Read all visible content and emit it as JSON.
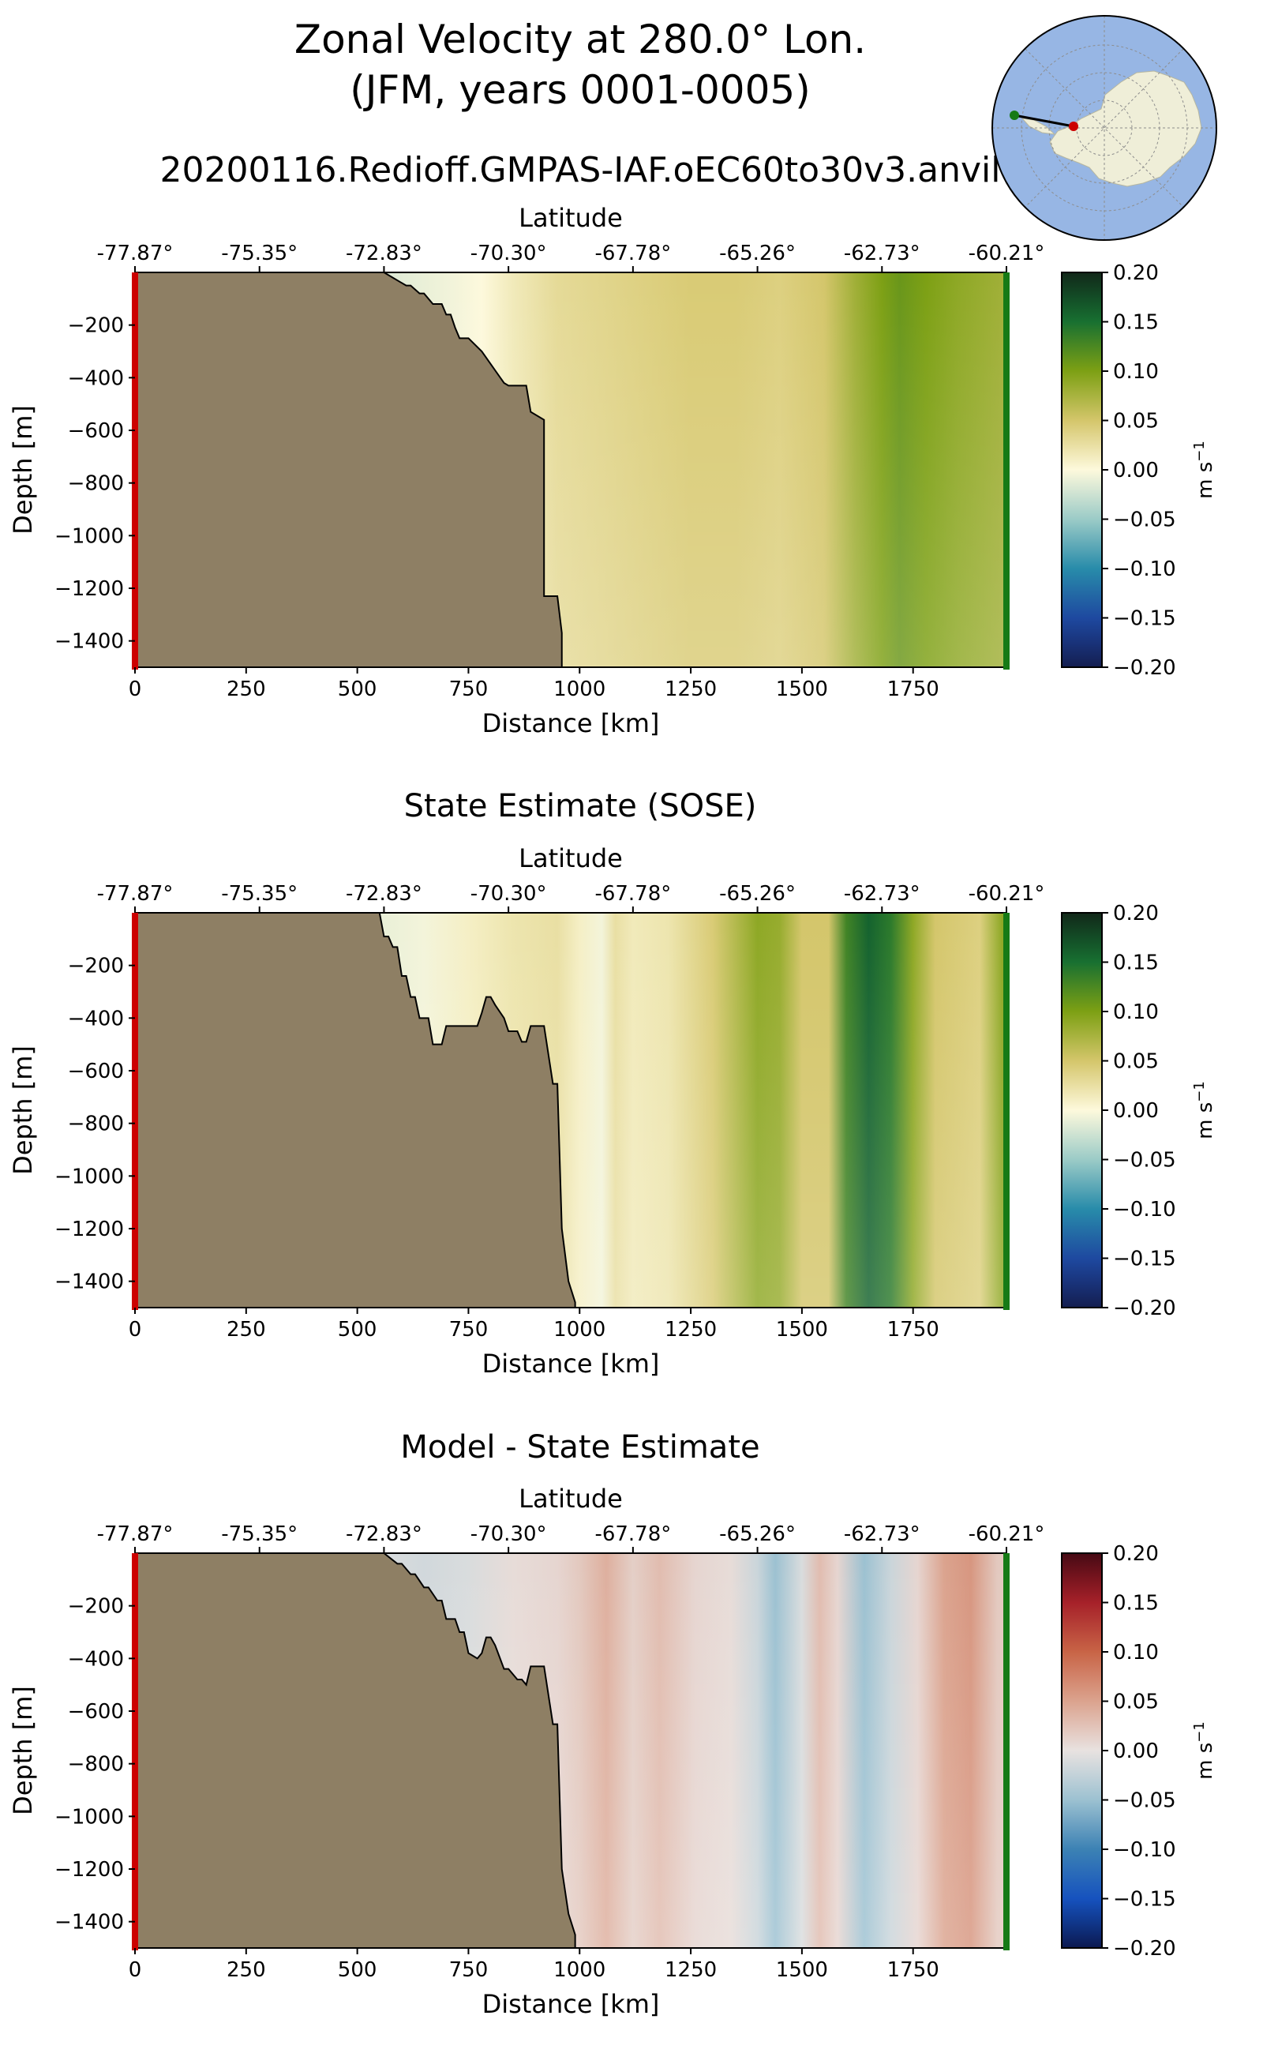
{
  "header": {
    "title_line1": "Zonal Velocity at 280.0° Lon.",
    "title_line2": "(JFM, years 0001-0005)",
    "run_name": "20200116.Redioff.GMPAS-IAF.oEC60to30v3.anvil"
  },
  "colors": {
    "land": "#8e7f64",
    "start_marker": "#cc0000",
    "end_marker": "#167a16",
    "map_ocean": "#97b6e4",
    "map_land": "#efeed8"
  },
  "chart_data": [
    {
      "type": "heatmap",
      "panel": "model",
      "title": "",
      "xlabel": "Distance [km]",
      "ylabel": "Depth [m]",
      "top_xlabel": "Latitude",
      "xlim": [
        0,
        1960
      ],
      "ylim": [
        -1500,
        0
      ],
      "x_ticks": [
        0,
        250,
        500,
        750,
        1000,
        1250,
        1500,
        1750
      ],
      "y_ticks": [
        -200,
        -400,
        -600,
        -800,
        -1000,
        -1200,
        -1400
      ],
      "top_ticks": [
        "-77.87°",
        "-75.35°",
        "-72.83°",
        "-70.30°",
        "-67.78°",
        "-65.26°",
        "-62.73°",
        "-60.21°"
      ],
      "colorbar": {
        "label": "m s$^{-1}$",
        "label_text": "m s",
        "label_exp": "−1",
        "vmin": -0.2,
        "vmax": 0.2,
        "ticks": [
          "0.20",
          "0.15",
          "0.10",
          "0.05",
          "0.00",
          "−0.05",
          "−0.10",
          "−0.15",
          "−0.20"
        ],
        "colormap": "diverging-green-blue"
      },
      "velocity_profile": {
        "distance_km": [
          580,
          650,
          720,
          780,
          850,
          950,
          1050,
          1150,
          1250,
          1350,
          1450,
          1550,
          1620,
          1680,
          1720,
          1780,
          1850,
          1900,
          1950
        ],
        "velocity": [
          -0.015,
          -0.01,
          -0.005,
          0.0,
          0.015,
          0.03,
          0.035,
          0.04,
          0.045,
          0.045,
          0.04,
          0.05,
          0.08,
          0.1,
          0.11,
          0.1,
          0.09,
          0.085,
          0.08
        ]
      },
      "seafloor": {
        "distance_km": [
          0,
          560,
          610,
          620,
          640,
          650,
          670,
          690,
          700,
          710,
          720,
          730,
          750,
          780,
          830,
          840,
          880,
          890,
          920,
          920,
          950,
          960,
          960
        ],
        "depth_m": [
          0,
          0,
          -50,
          -50,
          -80,
          -80,
          -120,
          -120,
          -160,
          -160,
          -210,
          -250,
          -250,
          -300,
          -420,
          -430,
          -430,
          -530,
          -560,
          -1230,
          -1230,
          -1370,
          -1500
        ]
      }
    },
    {
      "type": "heatmap",
      "panel": "sose",
      "title": "State Estimate (SOSE)",
      "xlabel": "Distance [km]",
      "ylabel": "Depth [m]",
      "top_xlabel": "Latitude",
      "xlim": [
        0,
        1960
      ],
      "ylim": [
        -1500,
        0
      ],
      "x_ticks": [
        0,
        250,
        500,
        750,
        1000,
        1250,
        1500,
        1750
      ],
      "y_ticks": [
        -200,
        -400,
        -600,
        -800,
        -1000,
        -1200,
        -1400
      ],
      "top_ticks": [
        "-77.87°",
        "-75.35°",
        "-72.83°",
        "-70.30°",
        "-67.78°",
        "-65.26°",
        "-62.73°",
        "-60.21°"
      ],
      "colorbar": {
        "label": "m s$^{-1}$",
        "label_text": "m s",
        "label_exp": "−1",
        "vmin": -0.2,
        "vmax": 0.2,
        "ticks": [
          "0.20",
          "0.15",
          "0.10",
          "0.05",
          "0.00",
          "−0.05",
          "−0.10",
          "−0.15",
          "−0.20"
        ],
        "colormap": "diverging-green-blue"
      },
      "velocity_profile": {
        "distance_km": [
          560,
          650,
          750,
          850,
          950,
          1000,
          1050,
          1080,
          1120,
          1200,
          1300,
          1400,
          1450,
          1500,
          1560,
          1600,
          1650,
          1700,
          1750,
          1800,
          1900,
          1950
        ],
        "velocity": [
          -0.01,
          -0.005,
          0.01,
          0.02,
          0.025,
          0.01,
          -0.005,
          0.025,
          0.015,
          0.02,
          0.045,
          0.09,
          0.085,
          0.05,
          0.05,
          0.13,
          0.16,
          0.14,
          0.09,
          0.05,
          0.04,
          0.09
        ]
      },
      "seafloor": {
        "distance_km": [
          0,
          550,
          560,
          570,
          580,
          590,
          600,
          610,
          620,
          630,
          640,
          660,
          670,
          690,
          700,
          740,
          770,
          780,
          790,
          800,
          810,
          830,
          840,
          860,
          870,
          880,
          890,
          920,
          940,
          950,
          960,
          975,
          990,
          990
        ],
        "depth_m": [
          0,
          0,
          -90,
          -90,
          -130,
          -130,
          -240,
          -240,
          -320,
          -320,
          -400,
          -400,
          -500,
          -500,
          -430,
          -430,
          -430,
          -380,
          -320,
          -320,
          -350,
          -400,
          -450,
          -450,
          -490,
          -490,
          -430,
          -430,
          -650,
          -650,
          -1200,
          -1400,
          -1480,
          -1500
        ]
      }
    },
    {
      "type": "heatmap",
      "panel": "difference",
      "title": "Model - State Estimate",
      "xlabel": "Distance [km]",
      "ylabel": "Depth [m]",
      "top_xlabel": "Latitude",
      "xlim": [
        0,
        1960
      ],
      "ylim": [
        -1500,
        0
      ],
      "x_ticks": [
        0,
        250,
        500,
        750,
        1000,
        1250,
        1500,
        1750
      ],
      "y_ticks": [
        -200,
        -400,
        -600,
        -800,
        -1000,
        -1200,
        -1400
      ],
      "top_ticks": [
        "-77.87°",
        "-75.35°",
        "-72.83°",
        "-70.30°",
        "-67.78°",
        "-65.26°",
        "-62.73°",
        "-60.21°"
      ],
      "colorbar": {
        "label": "m s$^{-1}$",
        "label_text": "m s",
        "label_exp": "−1",
        "vmin": -0.2,
        "vmax": 0.2,
        "ticks": [
          "0.20",
          "0.15",
          "0.10",
          "0.05",
          "0.00",
          "−0.05",
          "−0.10",
          "−0.15",
          "−0.20"
        ],
        "colormap": "diverging-red-blue"
      },
      "velocity_profile": {
        "distance_km": [
          560,
          650,
          750,
          850,
          950,
          1000,
          1060,
          1120,
          1180,
          1260,
          1340,
          1400,
          1440,
          1500,
          1540,
          1580,
          1640,
          1700,
          1760,
          1820,
          1880,
          1940
        ],
        "velocity": [
          -0.01,
          -0.015,
          -0.01,
          0.005,
          0.01,
          0.02,
          0.04,
          0.015,
          0.03,
          0.01,
          0.005,
          -0.02,
          -0.05,
          -0.01,
          0.03,
          0.01,
          -0.05,
          -0.02,
          0.01,
          0.05,
          0.06,
          0.02
        ]
      },
      "seafloor": {
        "distance_km": [
          0,
          560,
          590,
          600,
          620,
          630,
          650,
          660,
          680,
          690,
          700,
          720,
          730,
          740,
          750,
          770,
          780,
          790,
          800,
          810,
          830,
          840,
          860,
          870,
          880,
          890,
          920,
          940,
          950,
          960,
          975,
          990,
          990
        ],
        "depth_m": [
          0,
          0,
          -40,
          -40,
          -80,
          -80,
          -130,
          -130,
          -180,
          -180,
          -250,
          -250,
          -300,
          -300,
          -380,
          -400,
          -380,
          -320,
          -320,
          -350,
          -440,
          -440,
          -480,
          -480,
          -500,
          -430,
          -430,
          -650,
          -650,
          -1200,
          -1370,
          -1450,
          -1500
        ]
      }
    }
  ],
  "inset_map": {
    "description_ids": [
      "south-polar-map"
    ]
  }
}
